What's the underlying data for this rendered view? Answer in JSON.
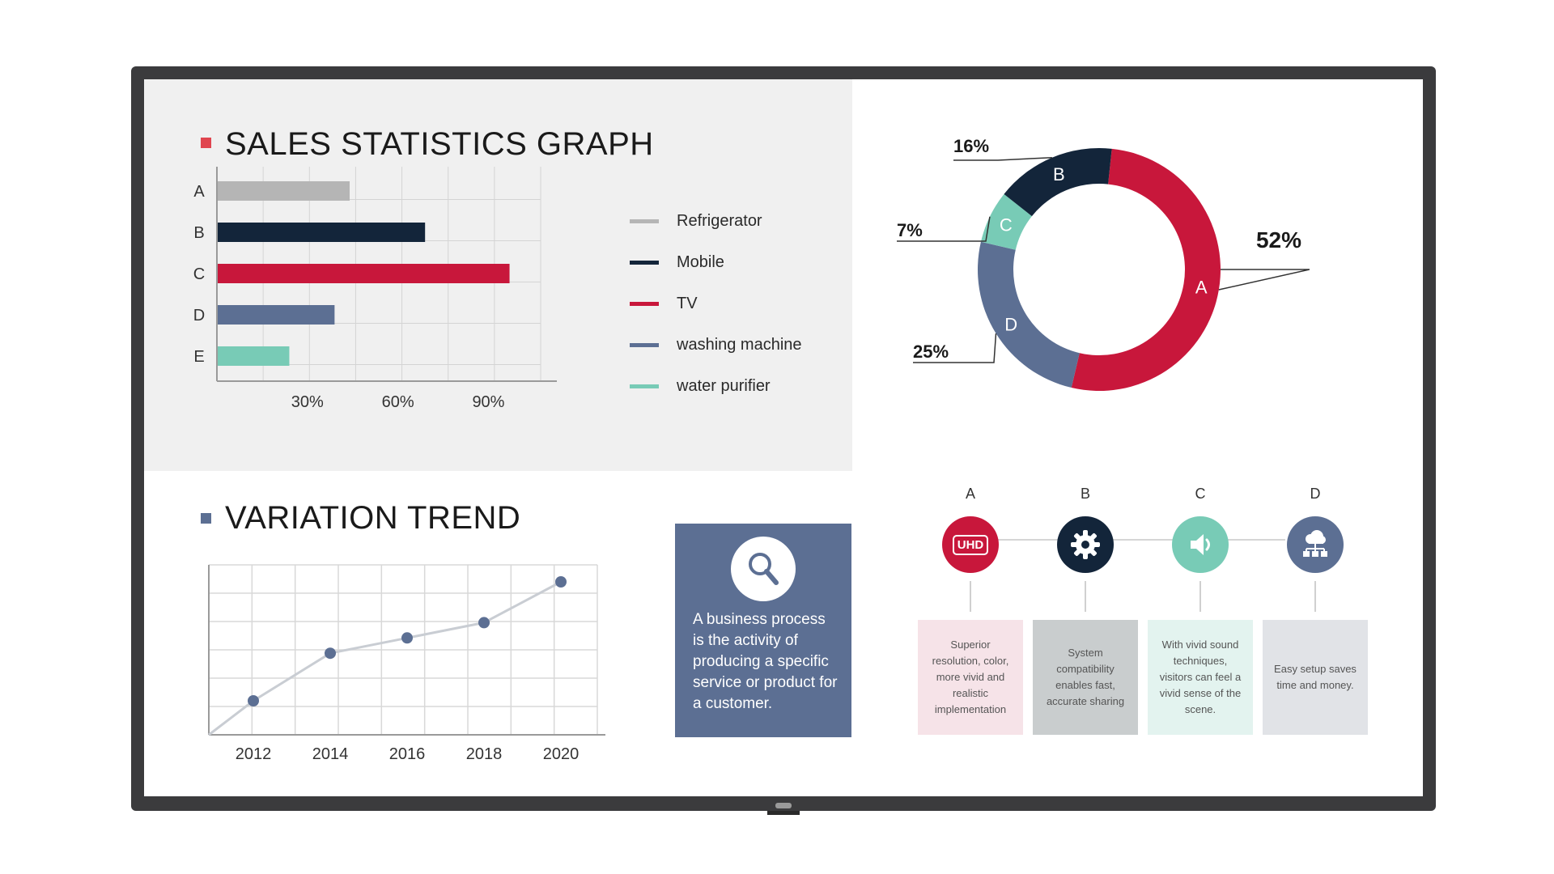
{
  "sales": {
    "title": "SALES STATISTICS GRAPH",
    "marker_color": "#e0454f"
  },
  "trend": {
    "title": "VARIATION TREND",
    "marker_color": "#5c6f93"
  },
  "legend": [
    {
      "label": "Refrigerator",
      "color": "#b5b5b5"
    },
    {
      "label": "Mobile",
      "color": "#13253a"
    },
    {
      "label": "TV",
      "color": "#c8173b"
    },
    {
      "label": "washing machine",
      "color": "#5c6f93"
    },
    {
      "label": "water purifier",
      "color": "#78cbb6"
    }
  ],
  "info": {
    "icon": "magnifier-icon",
    "text": "A business process is the activity of producing a specific service or product for a customer."
  },
  "features": [
    {
      "letter": "A",
      "icon": "uhd-icon",
      "icon_text": "UHD",
      "color": "#c8173b",
      "card_bg": "#f6e3e8",
      "text": "Superior resolution, color, more vivid and realistic implementation"
    },
    {
      "letter": "B",
      "icon": "gear-icon",
      "color": "#13253a",
      "card_bg": "#c9cdce",
      "text": "System compatibility enables fast, accurate sharing"
    },
    {
      "letter": "C",
      "icon": "speaker-icon",
      "color": "#78cbb6",
      "card_bg": "#e3f3ef",
      "text": "With vivid sound techniques, visitors can feel a vivid sense of the scene."
    },
    {
      "letter": "D",
      "icon": "network-icon",
      "color": "#5c6f93",
      "card_bg": "#e1e3e7",
      "text": "Easy setup saves time and money."
    }
  ],
  "chart_data": [
    {
      "type": "bar",
      "orientation": "horizontal",
      "title": "SALES STATISTICS GRAPH",
      "categories": [
        "A",
        "B",
        "C",
        "D",
        "E"
      ],
      "values": [
        44,
        69,
        97,
        39,
        24
      ],
      "colors": [
        "#b5b5b5",
        "#13253a",
        "#c8173b",
        "#5c6f93",
        "#78cbb6"
      ],
      "xticks": [
        "30%",
        "60%",
        "90%"
      ],
      "xtick_values": [
        30,
        60,
        90
      ],
      "xlim": [
        0,
        110
      ],
      "grid": true
    },
    {
      "type": "pie",
      "style": "donut",
      "slices": [
        {
          "label": "A",
          "value": 52,
          "value_label": "52%",
          "color": "#c8173b"
        },
        {
          "label": "D",
          "value": 25,
          "value_label": "25%",
          "color": "#5c6f93"
        },
        {
          "label": "C",
          "value": 7,
          "value_label": "7%",
          "color": "#78cbb6"
        },
        {
          "label": "B",
          "value": 16,
          "value_label": "16%",
          "color": "#13253a"
        }
      ]
    },
    {
      "type": "line",
      "title": "VARIATION TREND",
      "x": [
        2012,
        2014,
        2016,
        2018,
        2020
      ],
      "xticks": [
        "2012",
        "2014",
        "2016",
        "2018",
        "2020"
      ],
      "y": [
        20,
        48,
        57,
        66,
        90
      ],
      "ylim": [
        0,
        100
      ],
      "grid": true,
      "line_color": "#c9cdd3",
      "marker_color": "#5c6f93"
    }
  ]
}
